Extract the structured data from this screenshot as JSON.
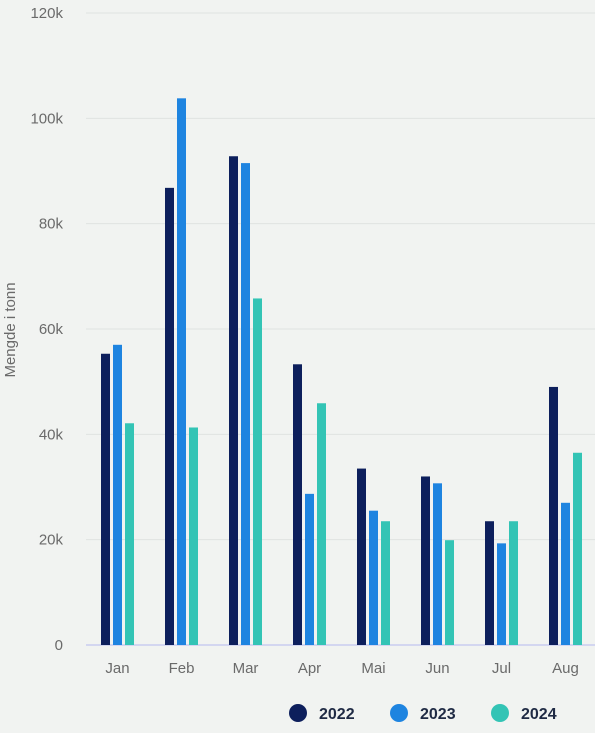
{
  "chart_data": {
    "type": "bar",
    "categories": [
      "Jan",
      "Feb",
      "Mar",
      "Apr",
      "Mai",
      "Jun",
      "Jul",
      "Aug"
    ],
    "series": [
      {
        "name": "2022",
        "color": "#0d1f5c",
        "values": [
          55300,
          86800,
          92800,
          53300,
          33500,
          32000,
          23500,
          49000
        ]
      },
      {
        "name": "2023",
        "color": "#1e84e0",
        "values": [
          57000,
          103800,
          91500,
          28700,
          25500,
          30700,
          19300,
          27000
        ]
      },
      {
        "name": "2024",
        "color": "#33c4b5",
        "values": [
          42100,
          41300,
          65800,
          45900,
          23500,
          19900,
          23500,
          36500
        ]
      }
    ],
    "ylabel": "Mengde i tonn",
    "xlabel": "",
    "ylim": [
      0,
      120000
    ],
    "yticks": [
      {
        "value": 0,
        "label": "0"
      },
      {
        "value": 20000,
        "label": "20k"
      },
      {
        "value": 40000,
        "label": "40k"
      },
      {
        "value": 60000,
        "label": "60k"
      },
      {
        "value": 80000,
        "label": "80k"
      },
      {
        "value": 100000,
        "label": "100k"
      },
      {
        "value": 120000,
        "label": "120k"
      }
    ],
    "grid": true,
    "legend_position": "bottom-right"
  }
}
